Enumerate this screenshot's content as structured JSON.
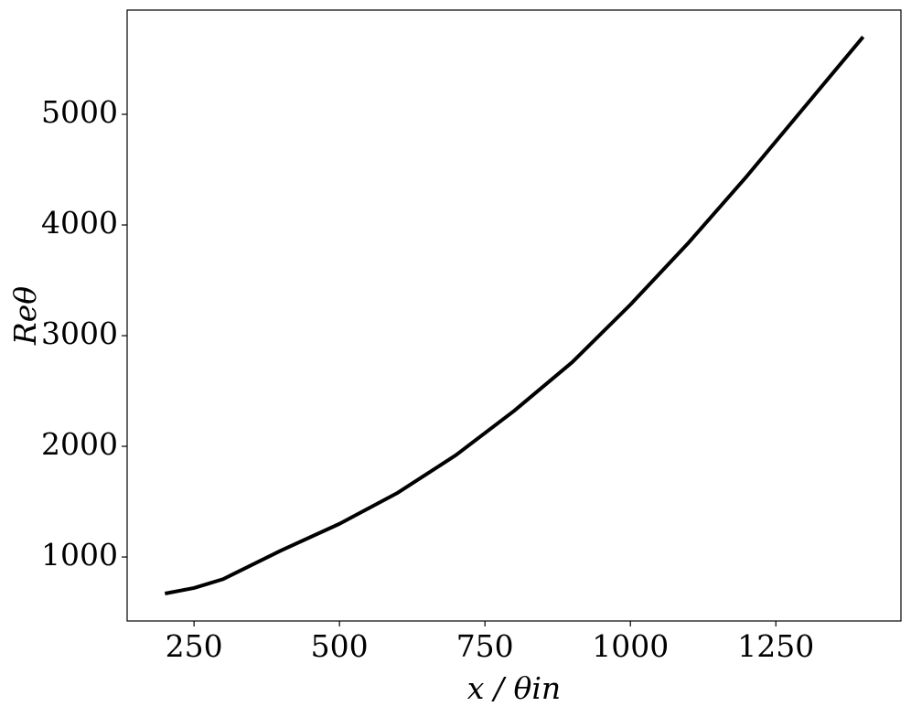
{
  "chart_data": {
    "type": "line",
    "xlabel": "x / θin",
    "ylabel": "Reθ",
    "x": [
      200,
      250,
      300,
      400,
      500,
      600,
      700,
      800,
      900,
      1000,
      1100,
      1200,
      1300,
      1400
    ],
    "series": [
      {
        "color": "#000000",
        "values": [
          670,
          720,
          800,
          1060,
          1300,
          1580,
          1920,
          2320,
          2760,
          3280,
          3840,
          4440,
          5070,
          5700
        ]
      }
    ],
    "xlim": [
      135,
      1465
    ],
    "ylim": [
      422,
      5942
    ],
    "xticks": [
      250,
      500,
      750,
      1000,
      1250
    ],
    "yticks": [
      1000,
      2000,
      3000,
      4000,
      5000
    ],
    "grid": false
  }
}
